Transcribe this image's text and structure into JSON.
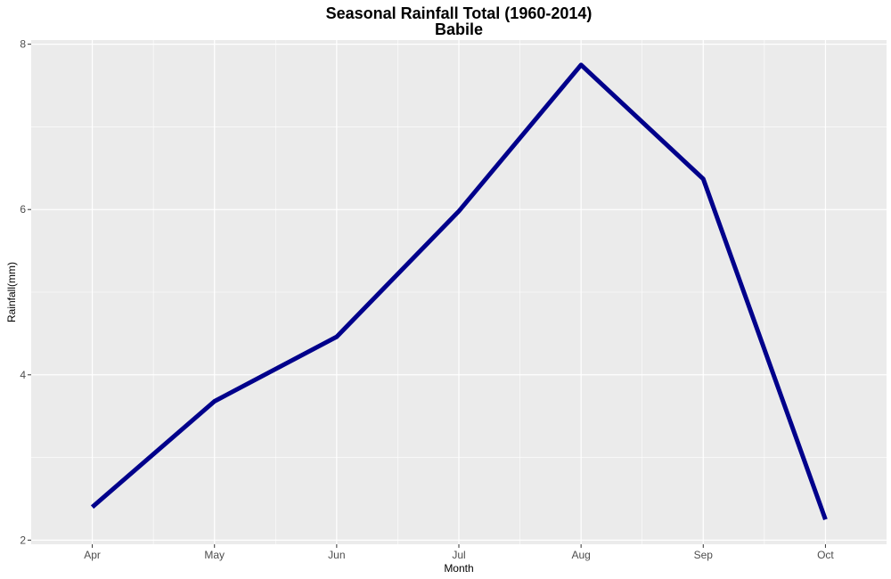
{
  "chart_data": {
    "type": "line",
    "title": "Seasonal Rainfall Total (1960-2014)",
    "subtitle": "Babile",
    "xlabel": "Month",
    "ylabel": "Rainfall(mm)",
    "categories": [
      "Apr",
      "May",
      "Jun",
      "Jul",
      "Aug",
      "Sep",
      "Oct"
    ],
    "values": [
      2.4,
      3.68,
      4.46,
      5.98,
      7.75,
      6.37,
      2.25
    ],
    "ylim": [
      1.95,
      8.05
    ],
    "yticks": [
      2,
      4,
      6,
      8
    ],
    "grid": true,
    "line_color": "#00008B",
    "panel_background": "#EBEBEB",
    "grid_color": "#FFFFFF"
  }
}
